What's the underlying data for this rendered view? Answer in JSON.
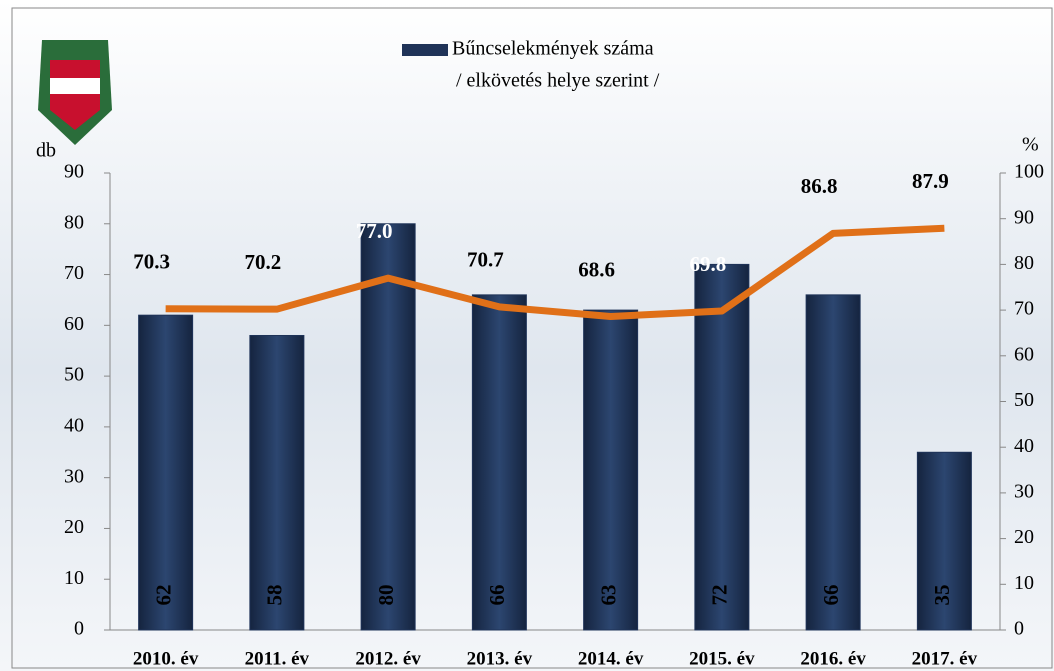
{
  "chart_data": {
    "type": "bar-line",
    "y_label": "db",
    "y2_label": "%",
    "categories": [
      "2010. év",
      "2011. év",
      "2012. év",
      "2013. év",
      "2014. év",
      "2015. év",
      "2016. év",
      "2017. év"
    ],
    "series": [
      {
        "name": "Bűncselekmények száma",
        "name_line2": "/ elkövetés helye szerint /",
        "type": "bar",
        "color": "#1f3358",
        "values": [
          62,
          58,
          80,
          66,
          63,
          72,
          66,
          35
        ]
      },
      {
        "type": "line",
        "axis": "y2",
        "color": "#e07018",
        "values": [
          70.3,
          70.2,
          77.0,
          70.7,
          68.6,
          69.8,
          86.8,
          87.9
        ],
        "value_labels": [
          "70.3",
          "70.2",
          "77.0",
          "70.7",
          "68.6",
          "69.8",
          "86.8",
          "87.9"
        ]
      }
    ],
    "ylim": [
      0,
      90
    ],
    "yticks": [
      0,
      10,
      20,
      30,
      40,
      50,
      60,
      70,
      80,
      90
    ],
    "y2lim": [
      0,
      100
    ],
    "y2ticks": [
      0,
      10,
      20,
      30,
      40,
      50,
      60,
      70,
      80,
      90,
      100
    ]
  }
}
